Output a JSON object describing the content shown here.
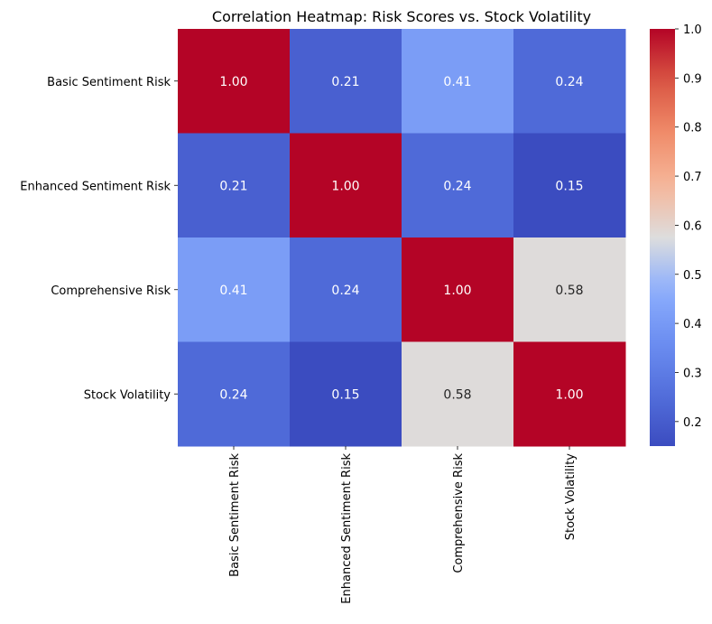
{
  "chart_data": {
    "type": "heatmap",
    "title": "Correlation Heatmap: Risk Scores vs. Stock Volatility",
    "rows": [
      "Basic Sentiment Risk",
      "Enhanced Sentiment Risk",
      "Comprehensive Risk",
      "Stock Volatility"
    ],
    "columns": [
      "Basic Sentiment Risk",
      "Enhanced Sentiment Risk",
      "Comprehensive Risk",
      "Stock Volatility"
    ],
    "values": [
      [
        1.0,
        0.21,
        0.41,
        0.24
      ],
      [
        0.21,
        1.0,
        0.24,
        0.15
      ],
      [
        0.41,
        0.24,
        1.0,
        0.58
      ],
      [
        0.24,
        0.15,
        0.58,
        1.0
      ]
    ],
    "cell_labels": [
      [
        "1.00",
        "0.21",
        "0.41",
        "0.24"
      ],
      [
        "0.21",
        "1.00",
        "0.24",
        "0.15"
      ],
      [
        "0.41",
        "0.24",
        "1.00",
        "0.58"
      ],
      [
        "0.24",
        "0.15",
        "0.58",
        "1.00"
      ]
    ],
    "colormap": "coolwarm",
    "color_range": [
      0.15,
      1.0
    ],
    "colorbar": {
      "ticks": [
        0.2,
        0.3,
        0.4,
        0.5,
        0.6,
        0.7,
        0.8,
        0.9,
        1.0
      ],
      "tick_labels": [
        "0.2",
        "0.3",
        "0.4",
        "0.5",
        "0.6",
        "0.7",
        "0.8",
        "0.9",
        "1.0"
      ],
      "placement": "right"
    },
    "grid": false,
    "legend": "none"
  }
}
